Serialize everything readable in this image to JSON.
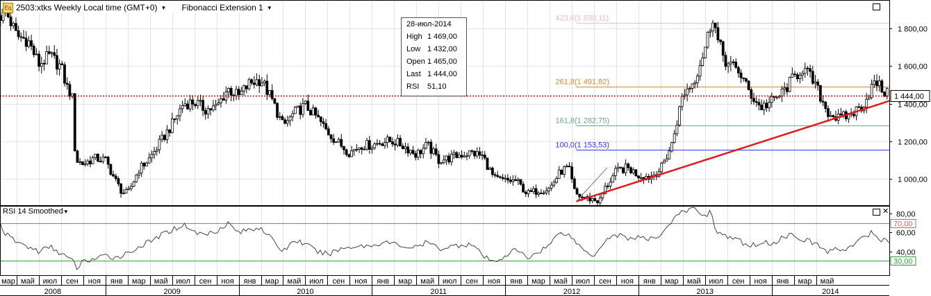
{
  "header": {
    "icon": "Eq",
    "symbol_text": "2503:xtks Weekly Local time (GMT+0)",
    "indicator_text": "Fibonacci Extension 1"
  },
  "info_box": {
    "date": "28-июл-2014",
    "rows": [
      {
        "label": "High",
        "value": "1 469,00"
      },
      {
        "label": "Low",
        "value": "1 432,00"
      },
      {
        "label": "Open",
        "value": "1 465,00"
      },
      {
        "label": "Last",
        "value": "1 444,00"
      },
      {
        "label": "RSI",
        "value": "51,10"
      }
    ]
  },
  "rsi_panel": {
    "title": "RSI 14 Smoothed"
  },
  "chart_data": [
    {
      "type": "candlestick",
      "x_unit": "months since Jan 2008",
      "xlim": [
        2.5,
        82.6
      ],
      "ylim": [
        860,
        1945
      ],
      "y_ticks": [
        {
          "value": 1000,
          "label": "1 000,00"
        },
        {
          "value": 1200,
          "label": "1 200,00"
        },
        {
          "value": 1400,
          "label": "1 400,00"
        },
        {
          "value": 1600,
          "label": "1 600,00"
        },
        {
          "value": 1800,
          "label": "1 800,00"
        }
      ],
      "last_price": {
        "value": 1444,
        "label": "1 444,00",
        "color": "#cc0000"
      },
      "fibonacci_levels": [
        {
          "label": "423,6(1 830,11)",
          "value": 1830.11,
          "color": "#f4b8c4"
        },
        {
          "label": "261,8(1 491,82)",
          "value": 1491.82,
          "color": "#d98a2b"
        },
        {
          "label": "161,8(1 282,75)",
          "value": 1282.75,
          "color": "#6fa88a"
        },
        {
          "label": "100,0(1 153,53)",
          "value": 1153.53,
          "color": "#3333ee"
        }
      ],
      "trendline": {
        "from": [
          54.4,
          880
        ],
        "to": [
          82.6,
          1415
        ],
        "color": "#e0191c"
      },
      "keypoints": [
        [
          2.6,
          1870
        ],
        [
          3.0,
          1900
        ],
        [
          4.0,
          1760
        ],
        [
          5.0,
          1740
        ],
        [
          6.0,
          1610
        ],
        [
          7.0,
          1655
        ],
        [
          8.0,
          1595
        ],
        [
          8.5,
          1490
        ],
        [
          9.0,
          1440
        ],
        [
          9.3,
          1100
        ],
        [
          10.0,
          1080
        ],
        [
          11.0,
          1110
        ],
        [
          12.0,
          1100
        ],
        [
          13.0,
          980
        ],
        [
          13.5,
          930
        ],
        [
          14.0,
          920
        ],
        [
          15.0,
          1050
        ],
        [
          16.0,
          1110
        ],
        [
          17.0,
          1200
        ],
        [
          18.0,
          1290
        ],
        [
          19.0,
          1400
        ],
        [
          20.0,
          1410
        ],
        [
          21.0,
          1370
        ],
        [
          22.0,
          1380
        ],
        [
          23.0,
          1480
        ],
        [
          24.0,
          1440
        ],
        [
          25.0,
          1510
        ],
        [
          26.0,
          1530
        ],
        [
          27.0,
          1420
        ],
        [
          28.0,
          1280
        ],
        [
          29.0,
          1350
        ],
        [
          30.0,
          1390
        ],
        [
          31.0,
          1330
        ],
        [
          32.0,
          1250
        ],
        [
          33.0,
          1190
        ],
        [
          34.0,
          1140
        ],
        [
          35.0,
          1180
        ],
        [
          36.0,
          1180
        ],
        [
          37.0,
          1200
        ],
        [
          38.0,
          1200
        ],
        [
          39.0,
          1170
        ],
        [
          40.0,
          1130
        ],
        [
          41.0,
          1180
        ],
        [
          42.0,
          1100
        ],
        [
          43.0,
          1110
        ],
        [
          44.0,
          1130
        ],
        [
          45.0,
          1140
        ],
        [
          46.0,
          1120
        ],
        [
          47.0,
          1000
        ],
        [
          48.0,
          990
        ],
        [
          49.0,
          990
        ],
        [
          50.0,
          920
        ],
        [
          51.0,
          940
        ],
        [
          52.0,
          950
        ],
        [
          53.0,
          1040
        ],
        [
          53.7,
          1060
        ],
        [
          54.3,
          920
        ],
        [
          55.0,
          900
        ],
        [
          56.0,
          890
        ],
        [
          56.5,
          880
        ],
        [
          57.0,
          950
        ],
        [
          58.0,
          1040
        ],
        [
          59.0,
          1060
        ],
        [
          60.0,
          1020
        ],
        [
          61.0,
          1010
        ],
        [
          62.0,
          1050
        ],
        [
          63.0,
          1180
        ],
        [
          64.0,
          1450
        ],
        [
          65.0,
          1520
        ],
        [
          66.0,
          1700
        ],
        [
          66.7,
          1870
        ],
        [
          67.2,
          1720
        ],
        [
          68.0,
          1610
        ],
        [
          69.0,
          1580
        ],
        [
          70.0,
          1460
        ],
        [
          71.0,
          1380
        ],
        [
          72.0,
          1410
        ],
        [
          73.0,
          1460
        ],
        [
          74.0,
          1540
        ],
        [
          74.8,
          1590
        ],
        [
          75.5,
          1540
        ],
        [
          76.0,
          1490
        ],
        [
          77.0,
          1360
        ],
        [
          78.0,
          1320
        ],
        [
          79.0,
          1340
        ],
        [
          80.0,
          1380
        ],
        [
          80.5,
          1420
        ],
        [
          81.0,
          1490
        ],
        [
          81.5,
          1510
        ],
        [
          82.0,
          1470
        ],
        [
          82.6,
          1440
        ]
      ]
    },
    {
      "type": "line",
      "name": "RSI 14 Smoothed",
      "x_unit": "months since Jan 2008",
      "xlim": [
        2.5,
        82.6
      ],
      "ylim": [
        15,
        88
      ],
      "y_ticks": [
        {
          "value": 40,
          "label": "40,00"
        },
        {
          "value": 60,
          "label": "60,00"
        },
        {
          "value": 80,
          "label": "80,00"
        }
      ],
      "levels": [
        {
          "value": 70,
          "label": "70,00",
          "color": "#e06060"
        },
        {
          "value": 30,
          "label": "30,00",
          "color": "#3a9a3a"
        }
      ],
      "line_color": "#444444",
      "keypoints": [
        [
          2.5,
          70
        ],
        [
          3.0,
          58
        ],
        [
          4.0,
          50
        ],
        [
          5.0,
          45
        ],
        [
          6.0,
          40
        ],
        [
          7.0,
          45
        ],
        [
          8.0,
          38
        ],
        [
          9.0,
          30
        ],
        [
          9.5,
          22
        ],
        [
          10.0,
          30
        ],
        [
          11.0,
          32
        ],
        [
          12.0,
          35
        ],
        [
          13.0,
          34
        ],
        [
          14.0,
          38
        ],
        [
          15.0,
          45
        ],
        [
          16.0,
          50
        ],
        [
          17.0,
          57
        ],
        [
          18.0,
          63
        ],
        [
          19.0,
          68
        ],
        [
          19.5,
          66
        ],
        [
          20.0,
          60
        ],
        [
          21.0,
          58
        ],
        [
          22.0,
          62
        ],
        [
          23.0,
          70
        ],
        [
          24.0,
          60
        ],
        [
          25.0,
          63
        ],
        [
          26.0,
          66
        ],
        [
          27.0,
          52
        ],
        [
          28.0,
          40
        ],
        [
          29.0,
          52
        ],
        [
          30.0,
          48
        ],
        [
          31.0,
          40
        ],
        [
          32.0,
          37
        ],
        [
          33.0,
          42
        ],
        [
          34.0,
          45
        ],
        [
          35.0,
          46
        ],
        [
          36.0,
          46
        ],
        [
          37.0,
          50
        ],
        [
          38.0,
          48
        ],
        [
          39.0,
          45
        ],
        [
          40.0,
          44
        ],
        [
          41.0,
          50
        ],
        [
          42.0,
          43
        ],
        [
          43.0,
          45
        ],
        [
          44.0,
          47
        ],
        [
          45.0,
          48
        ],
        [
          46.0,
          35
        ],
        [
          47.0,
          28
        ],
        [
          48.0,
          36
        ],
        [
          49.0,
          42
        ],
        [
          50.0,
          33
        ],
        [
          51.0,
          40
        ],
        [
          52.0,
          47
        ],
        [
          53.0,
          62
        ],
        [
          54.0,
          55
        ],
        [
          55.0,
          42
        ],
        [
          56.0,
          36
        ],
        [
          57.0,
          52
        ],
        [
          58.0,
          58
        ],
        [
          59.0,
          54
        ],
        [
          60.0,
          55
        ],
        [
          61.0,
          52
        ],
        [
          62.0,
          58
        ],
        [
          63.0,
          72
        ],
        [
          64.0,
          82
        ],
        [
          65.0,
          85
        ],
        [
          66.0,
          78
        ],
        [
          66.5,
          82
        ],
        [
          67.0,
          62
        ],
        [
          68.0,
          55
        ],
        [
          69.0,
          52
        ],
        [
          70.0,
          45
        ],
        [
          71.0,
          50
        ],
        [
          72.0,
          48
        ],
        [
          73.0,
          55
        ],
        [
          74.0,
          58
        ],
        [
          75.0,
          52
        ],
        [
          76.0,
          48
        ],
        [
          77.0,
          40
        ],
        [
          78.0,
          42
        ],
        [
          79.0,
          44
        ],
        [
          80.0,
          52
        ],
        [
          81.0,
          60
        ],
        [
          81.5,
          55
        ],
        [
          82.0,
          52
        ],
        [
          82.6,
          50
        ]
      ]
    }
  ],
  "x_axis": {
    "months": [
      {
        "m": 2,
        "label": "мар"
      },
      {
        "m": 4,
        "label": "май"
      },
      {
        "m": 6,
        "label": "июл"
      },
      {
        "m": 8,
        "label": "сен"
      },
      {
        "m": 10,
        "label": "ноя"
      },
      {
        "m": 12,
        "label": "янв"
      },
      {
        "m": 14,
        "label": "мар"
      },
      {
        "m": 16,
        "label": "май"
      },
      {
        "m": 18,
        "label": "июл"
      },
      {
        "m": 20,
        "label": "сен"
      },
      {
        "m": 22,
        "label": "ноя"
      },
      {
        "m": 24,
        "label": "янв"
      },
      {
        "m": 26,
        "label": "мар"
      },
      {
        "m": 28,
        "label": "май"
      },
      {
        "m": 30,
        "label": "июл"
      },
      {
        "m": 32,
        "label": "сен"
      },
      {
        "m": 34,
        "label": "ноя"
      },
      {
        "m": 36,
        "label": "янв"
      },
      {
        "m": 38,
        "label": "мар"
      },
      {
        "m": 40,
        "label": "май"
      },
      {
        "m": 42,
        "label": "июл"
      },
      {
        "m": 44,
        "label": "сен"
      },
      {
        "m": 46,
        "label": "ноя"
      },
      {
        "m": 48,
        "label": "янв"
      },
      {
        "m": 50,
        "label": "мар"
      },
      {
        "m": 52,
        "label": "май"
      },
      {
        "m": 54,
        "label": "июл"
      },
      {
        "m": 56,
        "label": "сен"
      },
      {
        "m": 58,
        "label": "ноя"
      },
      {
        "m": 60,
        "label": "янв"
      },
      {
        "m": 62,
        "label": "мар"
      },
      {
        "m": 64,
        "label": "май"
      },
      {
        "m": 66,
        "label": "июл"
      },
      {
        "m": 68,
        "label": "сен"
      },
      {
        "m": 70,
        "label": "ноя"
      },
      {
        "m": 72,
        "label": "янв"
      },
      {
        "m": 74,
        "label": "мар"
      },
      {
        "m": 76,
        "label": "май"
      }
    ],
    "years": [
      {
        "m": 0,
        "label": "2008"
      },
      {
        "m": 12,
        "label": "2009"
      },
      {
        "m": 24,
        "label": "2010"
      },
      {
        "m": 36,
        "label": "2011"
      },
      {
        "m": 48,
        "label": "2012"
      },
      {
        "m": 60,
        "label": "2013"
      },
      {
        "m": 72,
        "label": "2014"
      }
    ]
  }
}
